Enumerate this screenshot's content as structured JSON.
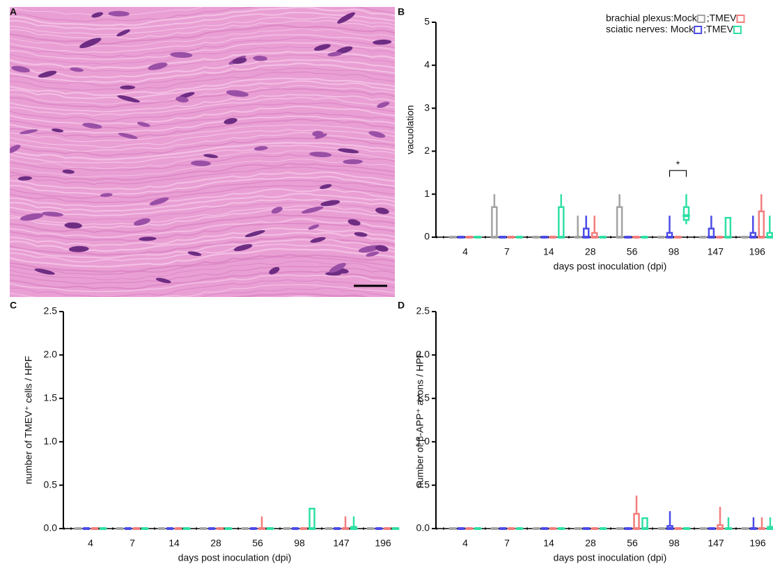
{
  "figure_a": {
    "panel": "A"
  },
  "chart_data": [
    {
      "type": "box",
      "panel": "B",
      "y_label": "vacuolation",
      "x_label": "days post inoculation (dpi)",
      "categories": [
        "4",
        "7",
        "14",
        "28",
        "56",
        "98",
        "147",
        "196"
      ],
      "ylim": [
        0,
        5
      ],
      "yticks": [
        0,
        1,
        2,
        3,
        4,
        5
      ],
      "legend": "upper right",
      "legend_separator": ";",
      "annotations": [
        {
          "text": "*"
        }
      ],
      "series": [
        {
          "name": "Mock",
          "group": "brachial plexus:",
          "color": "#a3a3a3",
          "values": [
            {
              "min": 0,
              "q1": 0,
              "median": 0,
              "q3": 0,
              "max": 0
            },
            {
              "min": 0,
              "q1": 0,
              "median": 0,
              "q3": 0.7,
              "max": 1
            },
            {
              "min": 0,
              "q1": 0,
              "median": 0,
              "q3": 0,
              "max": 0
            },
            {
              "min": 0,
              "q1": 0,
              "median": 0,
              "q3": 0,
              "max": 0.5
            },
            {
              "min": 0,
              "q1": 0,
              "median": 0,
              "q3": 0.7,
              "max": 1
            },
            {
              "min": 0,
              "q1": 0,
              "median": 0,
              "q3": 0,
              "max": 0
            },
            {
              "min": 0,
              "q1": 0,
              "median": 0,
              "q3": 0,
              "max": 0
            },
            {
              "min": 0,
              "q1": 0,
              "median": 0,
              "q3": 0,
              "max": 0
            }
          ]
        },
        {
          "name": "Mock",
          "group": "sciatic nerves:",
          "color": "#4b4be8",
          "values": [
            {
              "min": 0,
              "q1": 0,
              "median": 0,
              "q3": 0,
              "max": 0
            },
            {
              "min": 0,
              "q1": 0,
              "median": 0,
              "q3": 0,
              "max": 0
            },
            {
              "min": 0,
              "q1": 0,
              "median": 0,
              "q3": 0,
              "max": 0
            },
            {
              "min": 0,
              "q1": 0,
              "median": 0,
              "q3": 0.2,
              "max": 0.5
            },
            {
              "min": 0,
              "q1": 0,
              "median": 0,
              "q3": 0,
              "max": 0
            },
            {
              "min": 0,
              "q1": 0,
              "median": 0,
              "q3": 0.1,
              "max": 0.5
            },
            {
              "min": 0,
              "q1": 0,
              "median": 0,
              "q3": 0.2,
              "max": 0.5
            },
            {
              "min": 0,
              "q1": 0,
              "median": 0,
              "q3": 0.1,
              "max": 0.5
            }
          ]
        },
        {
          "name": "TMEV",
          "group": "brachial plexus:",
          "color": "#f27d7d",
          "values": [
            {
              "min": 0,
              "q1": 0,
              "median": 0,
              "q3": 0,
              "max": 0
            },
            {
              "min": 0,
              "q1": 0,
              "median": 0,
              "q3": 0,
              "max": 0
            },
            {
              "min": 0,
              "q1": 0,
              "median": 0,
              "q3": 0,
              "max": 0
            },
            {
              "min": 0,
              "q1": 0,
              "median": 0,
              "q3": 0.1,
              "max": 0.5
            },
            {
              "min": 0,
              "q1": 0,
              "median": 0,
              "q3": 0,
              "max": 0
            },
            {
              "min": 0,
              "q1": 0,
              "median": 0,
              "q3": 0,
              "max": 0
            },
            {
              "min": 0,
              "q1": 0,
              "median": 0,
              "q3": 0,
              "max": 0
            },
            {
              "min": 0,
              "q1": 0,
              "median": 0,
              "q3": 0.6,
              "max": 1
            }
          ]
        },
        {
          "name": "TMEV",
          "group": "sciatic nerves:",
          "color": "#2fe0a2",
          "values": [
            {
              "min": 0,
              "q1": 0,
              "median": 0,
              "q3": 0,
              "max": 0
            },
            {
              "min": 0,
              "q1": 0,
              "median": 0,
              "q3": 0,
              "max": 0
            },
            {
              "min": 0,
              "q1": 0,
              "median": 0,
              "q3": 0.7,
              "max": 1
            },
            {
              "min": 0,
              "q1": 0,
              "median": 0,
              "q3": 0,
              "max": 0
            },
            {
              "min": 0,
              "q1": 0,
              "median": 0,
              "q3": 0,
              "max": 0
            },
            {
              "min": 0.3,
              "q1": 0.4,
              "median": 0.5,
              "q3": 0.7,
              "max": 1
            },
            {
              "min": 0,
              "q1": 0,
              "median": 0,
              "q3": 0.45,
              "max": 0.45
            },
            {
              "min": 0,
              "q1": 0,
              "median": 0,
              "q3": 0.1,
              "max": 0.5
            }
          ]
        }
      ]
    },
    {
      "type": "box",
      "panel": "C",
      "y_label": "number of TMEV⁺ cells / HPF",
      "x_label": "days post inoculation (dpi)",
      "categories": [
        "4",
        "7",
        "14",
        "28",
        "56",
        "98",
        "147",
        "196"
      ],
      "ylim": [
        0,
        2.5
      ],
      "yticks": [
        {
          "value": 0,
          "label": "0.0"
        },
        0.5,
        {
          "value": 1,
          "label": "1.0"
        },
        1.5,
        {
          "value": 2,
          "label": "2.0"
        },
        2.5
      ],
      "series": [
        {
          "name": "Mock",
          "group": "brachial plexus:",
          "color": "#a3a3a3",
          "values": [
            {
              "min": 0,
              "q1": 0,
              "median": 0,
              "q3": 0,
              "max": 0
            },
            {
              "min": 0,
              "q1": 0,
              "median": 0,
              "q3": 0,
              "max": 0
            },
            {
              "min": 0,
              "q1": 0,
              "median": 0,
              "q3": 0,
              "max": 0
            },
            {
              "min": 0,
              "q1": 0,
              "median": 0,
              "q3": 0,
              "max": 0
            },
            {
              "min": 0,
              "q1": 0,
              "median": 0,
              "q3": 0,
              "max": 0
            },
            {
              "min": 0,
              "q1": 0,
              "median": 0,
              "q3": 0,
              "max": 0
            },
            {
              "min": 0,
              "q1": 0,
              "median": 0,
              "q3": 0,
              "max": 0
            },
            {
              "min": 0,
              "q1": 0,
              "median": 0,
              "q3": 0,
              "max": 0
            }
          ]
        },
        {
          "name": "Mock",
          "group": "sciatic nerves:",
          "color": "#4b4be8",
          "values": [
            {
              "min": 0,
              "q1": 0,
              "median": 0,
              "q3": 0,
              "max": 0
            },
            {
              "min": 0,
              "q1": 0,
              "median": 0,
              "q3": 0,
              "max": 0
            },
            {
              "min": 0,
              "q1": 0,
              "median": 0,
              "q3": 0,
              "max": 0
            },
            {
              "min": 0,
              "q1": 0,
              "median": 0,
              "q3": 0,
              "max": 0
            },
            {
              "min": 0,
              "q1": 0,
              "median": 0,
              "q3": 0,
              "max": 0
            },
            {
              "min": 0,
              "q1": 0,
              "median": 0,
              "q3": 0,
              "max": 0
            },
            {
              "min": 0,
              "q1": 0,
              "median": 0,
              "q3": 0,
              "max": 0
            },
            {
              "min": 0,
              "q1": 0,
              "median": 0,
              "q3": 0,
              "max": 0
            }
          ]
        },
        {
          "name": "TMEV",
          "group": "brachial plexus:",
          "color": "#f27d7d",
          "values": [
            {
              "min": 0,
              "q1": 0,
              "median": 0,
              "q3": 0,
              "max": 0
            },
            {
              "min": 0,
              "q1": 0,
              "median": 0,
              "q3": 0,
              "max": 0
            },
            {
              "min": 0,
              "q1": 0,
              "median": 0,
              "q3": 0,
              "max": 0
            },
            {
              "min": 0,
              "q1": 0,
              "median": 0,
              "q3": 0,
              "max": 0
            },
            {
              "min": 0,
              "q1": 0,
              "median": 0,
              "q3": 0,
              "max": 0.14
            },
            {
              "min": 0,
              "q1": 0,
              "median": 0,
              "q3": 0,
              "max": 0
            },
            {
              "min": 0,
              "q1": 0,
              "median": 0,
              "q3": 0,
              "max": 0.14
            },
            {
              "min": 0,
              "q1": 0,
              "median": 0,
              "q3": 0,
              "max": 0
            }
          ]
        },
        {
          "name": "TMEV",
          "group": "sciatic nerves:",
          "color": "#2fe0a2",
          "values": [
            {
              "min": 0,
              "q1": 0,
              "median": 0,
              "q3": 0,
              "max": 0
            },
            {
              "min": 0,
              "q1": 0,
              "median": 0,
              "q3": 0,
              "max": 0
            },
            {
              "min": 0,
              "q1": 0,
              "median": 0,
              "q3": 0,
              "max": 0
            },
            {
              "min": 0,
              "q1": 0,
              "median": 0,
              "q3": 0,
              "max": 0
            },
            {
              "min": 0,
              "q1": 0,
              "median": 0,
              "q3": 0,
              "max": 0
            },
            {
              "min": 0,
              "q1": 0,
              "median": 0,
              "q3": 0.23,
              "max": 0.23
            },
            {
              "min": 0,
              "q1": 0,
              "median": 0,
              "q3": 0.02,
              "max": 0.14
            },
            {
              "min": 0,
              "q1": 0,
              "median": 0,
              "q3": 0,
              "max": 0
            }
          ]
        }
      ]
    },
    {
      "type": "box",
      "panel": "D",
      "y_label": "number of β-APP⁺ axons / HPF",
      "x_label": "days post inoculation (dpi)",
      "categories": [
        "4",
        "7",
        "14",
        "28",
        "56",
        "98",
        "147",
        "196"
      ],
      "ylim": [
        0,
        2.5
      ],
      "yticks": [
        {
          "value": 0,
          "label": "0.0"
        },
        0.5,
        {
          "value": 1,
          "label": "1.0"
        },
        1.5,
        {
          "value": 2,
          "label": "2.0"
        },
        2.5
      ],
      "series": [
        {
          "name": "Mock",
          "group": "brachial plexus:",
          "color": "#a3a3a3",
          "values": [
            {
              "min": 0,
              "q1": 0,
              "median": 0,
              "q3": 0,
              "max": 0
            },
            {
              "min": 0,
              "q1": 0,
              "median": 0,
              "q3": 0,
              "max": 0
            },
            {
              "min": 0,
              "q1": 0,
              "median": 0,
              "q3": 0,
              "max": 0
            },
            {
              "min": 0,
              "q1": 0,
              "median": 0,
              "q3": 0,
              "max": 0
            },
            {
              "min": 0,
              "q1": 0,
              "median": 0,
              "q3": 0,
              "max": 0
            },
            {
              "min": 0,
              "q1": 0,
              "median": 0,
              "q3": 0,
              "max": 0
            },
            {
              "min": 0,
              "q1": 0,
              "median": 0,
              "q3": 0,
              "max": 0
            },
            {
              "min": 0,
              "q1": 0,
              "median": 0,
              "q3": 0,
              "max": 0
            }
          ]
        },
        {
          "name": "Mock",
          "group": "sciatic nerves:",
          "color": "#4b4be8",
          "values": [
            {
              "min": 0,
              "q1": 0,
              "median": 0,
              "q3": 0,
              "max": 0
            },
            {
              "min": 0,
              "q1": 0,
              "median": 0,
              "q3": 0,
              "max": 0
            },
            {
              "min": 0,
              "q1": 0,
              "median": 0,
              "q3": 0,
              "max": 0
            },
            {
              "min": 0,
              "q1": 0,
              "median": 0,
              "q3": 0,
              "max": 0
            },
            {
              "min": 0,
              "q1": 0,
              "median": 0,
              "q3": 0,
              "max": 0
            },
            {
              "min": 0,
              "q1": 0,
              "median": 0,
              "q3": 0.03,
              "max": 0.2
            },
            {
              "min": 0,
              "q1": 0,
              "median": 0,
              "q3": 0,
              "max": 0
            },
            {
              "min": 0,
              "q1": 0,
              "median": 0,
              "q3": 0,
              "max": 0.13
            }
          ]
        },
        {
          "name": "TMEV",
          "group": "brachial plexus:",
          "color": "#f27d7d",
          "values": [
            {
              "min": 0,
              "q1": 0,
              "median": 0,
              "q3": 0,
              "max": 0
            },
            {
              "min": 0,
              "q1": 0,
              "median": 0,
              "q3": 0,
              "max": 0
            },
            {
              "min": 0,
              "q1": 0,
              "median": 0,
              "q3": 0,
              "max": 0
            },
            {
              "min": 0,
              "q1": 0,
              "median": 0,
              "q3": 0,
              "max": 0
            },
            {
              "min": 0,
              "q1": 0,
              "median": 0,
              "q3": 0.17,
              "max": 0.38
            },
            {
              "min": 0,
              "q1": 0,
              "median": 0,
              "q3": 0,
              "max": 0
            },
            {
              "min": 0,
              "q1": 0,
              "median": 0,
              "q3": 0.04,
              "max": 0.25
            },
            {
              "min": 0,
              "q1": 0,
              "median": 0,
              "q3": 0,
              "max": 0.13
            }
          ]
        },
        {
          "name": "TMEV",
          "group": "sciatic nerves:",
          "color": "#2fe0a2",
          "values": [
            {
              "min": 0,
              "q1": 0,
              "median": 0,
              "q3": 0,
              "max": 0
            },
            {
              "min": 0,
              "q1": 0,
              "median": 0,
              "q3": 0,
              "max": 0
            },
            {
              "min": 0,
              "q1": 0,
              "median": 0,
              "q3": 0,
              "max": 0
            },
            {
              "min": 0,
              "q1": 0,
              "median": 0,
              "q3": 0,
              "max": 0
            },
            {
              "min": 0,
              "q1": 0,
              "median": 0,
              "q3": 0.12,
              "max": 0.12
            },
            {
              "min": 0,
              "q1": 0,
              "median": 0,
              "q3": 0,
              "max": 0
            },
            {
              "min": 0,
              "q1": 0,
              "median": 0,
              "q3": 0,
              "max": 0.13
            },
            {
              "min": 0,
              "q1": 0,
              "median": 0,
              "q3": 0.02,
              "max": 0.13
            }
          ]
        }
      ]
    }
  ]
}
